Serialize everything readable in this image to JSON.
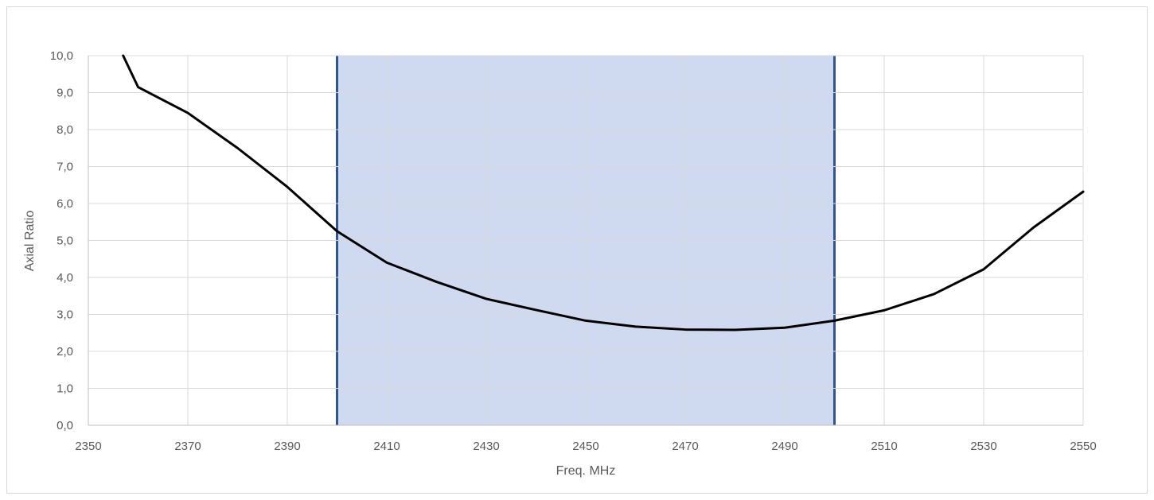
{
  "chart_data": {
    "type": "line",
    "title": "",
    "xlabel": "Freq. MHz",
    "ylabel": "Axial Ratio",
    "xlim": [
      2350,
      2550
    ],
    "ylim": [
      0,
      10
    ],
    "x_ticks": [
      2350,
      2370,
      2390,
      2410,
      2430,
      2450,
      2470,
      2490,
      2510,
      2530,
      2550
    ],
    "x_tick_labels": [
      "2350",
      "2370",
      "2390",
      "2410",
      "2430",
      "2450",
      "2470",
      "2490",
      "2510",
      "2530",
      "2550"
    ],
    "y_ticks": [
      0,
      1,
      2,
      3,
      4,
      5,
      6,
      7,
      8,
      9,
      10
    ],
    "y_tick_labels": [
      "0,0",
      "1,0",
      "2,0",
      "3,0",
      "4,0",
      "5,0",
      "6,0",
      "7,0",
      "8,0",
      "9,0",
      "10,0"
    ],
    "grid": true,
    "legend": "none",
    "series": [
      {
        "color": "#000000",
        "x": [
          2357,
          2360,
          2370,
          2380,
          2390,
          2400,
          2410,
          2420,
          2430,
          2440,
          2450,
          2460,
          2470,
          2480,
          2490,
          2500,
          2510,
          2520,
          2530,
          2540,
          2550
        ],
        "y": [
          10.0,
          9.15,
          8.45,
          7.5,
          6.45,
          5.25,
          4.4,
          3.88,
          3.42,
          3.12,
          2.83,
          2.67,
          2.59,
          2.58,
          2.64,
          2.83,
          3.11,
          3.55,
          4.22,
          5.35,
          6.32
        ]
      }
    ],
    "highlight_band": {
      "x_start": 2400,
      "x_end": 2500,
      "fill_color": "#cfdaf0",
      "edge_color": "#2f5597"
    },
    "colors": {
      "grid": "#d9d9d9",
      "axis": "#bfbfbf",
      "text": "#595959"
    }
  }
}
